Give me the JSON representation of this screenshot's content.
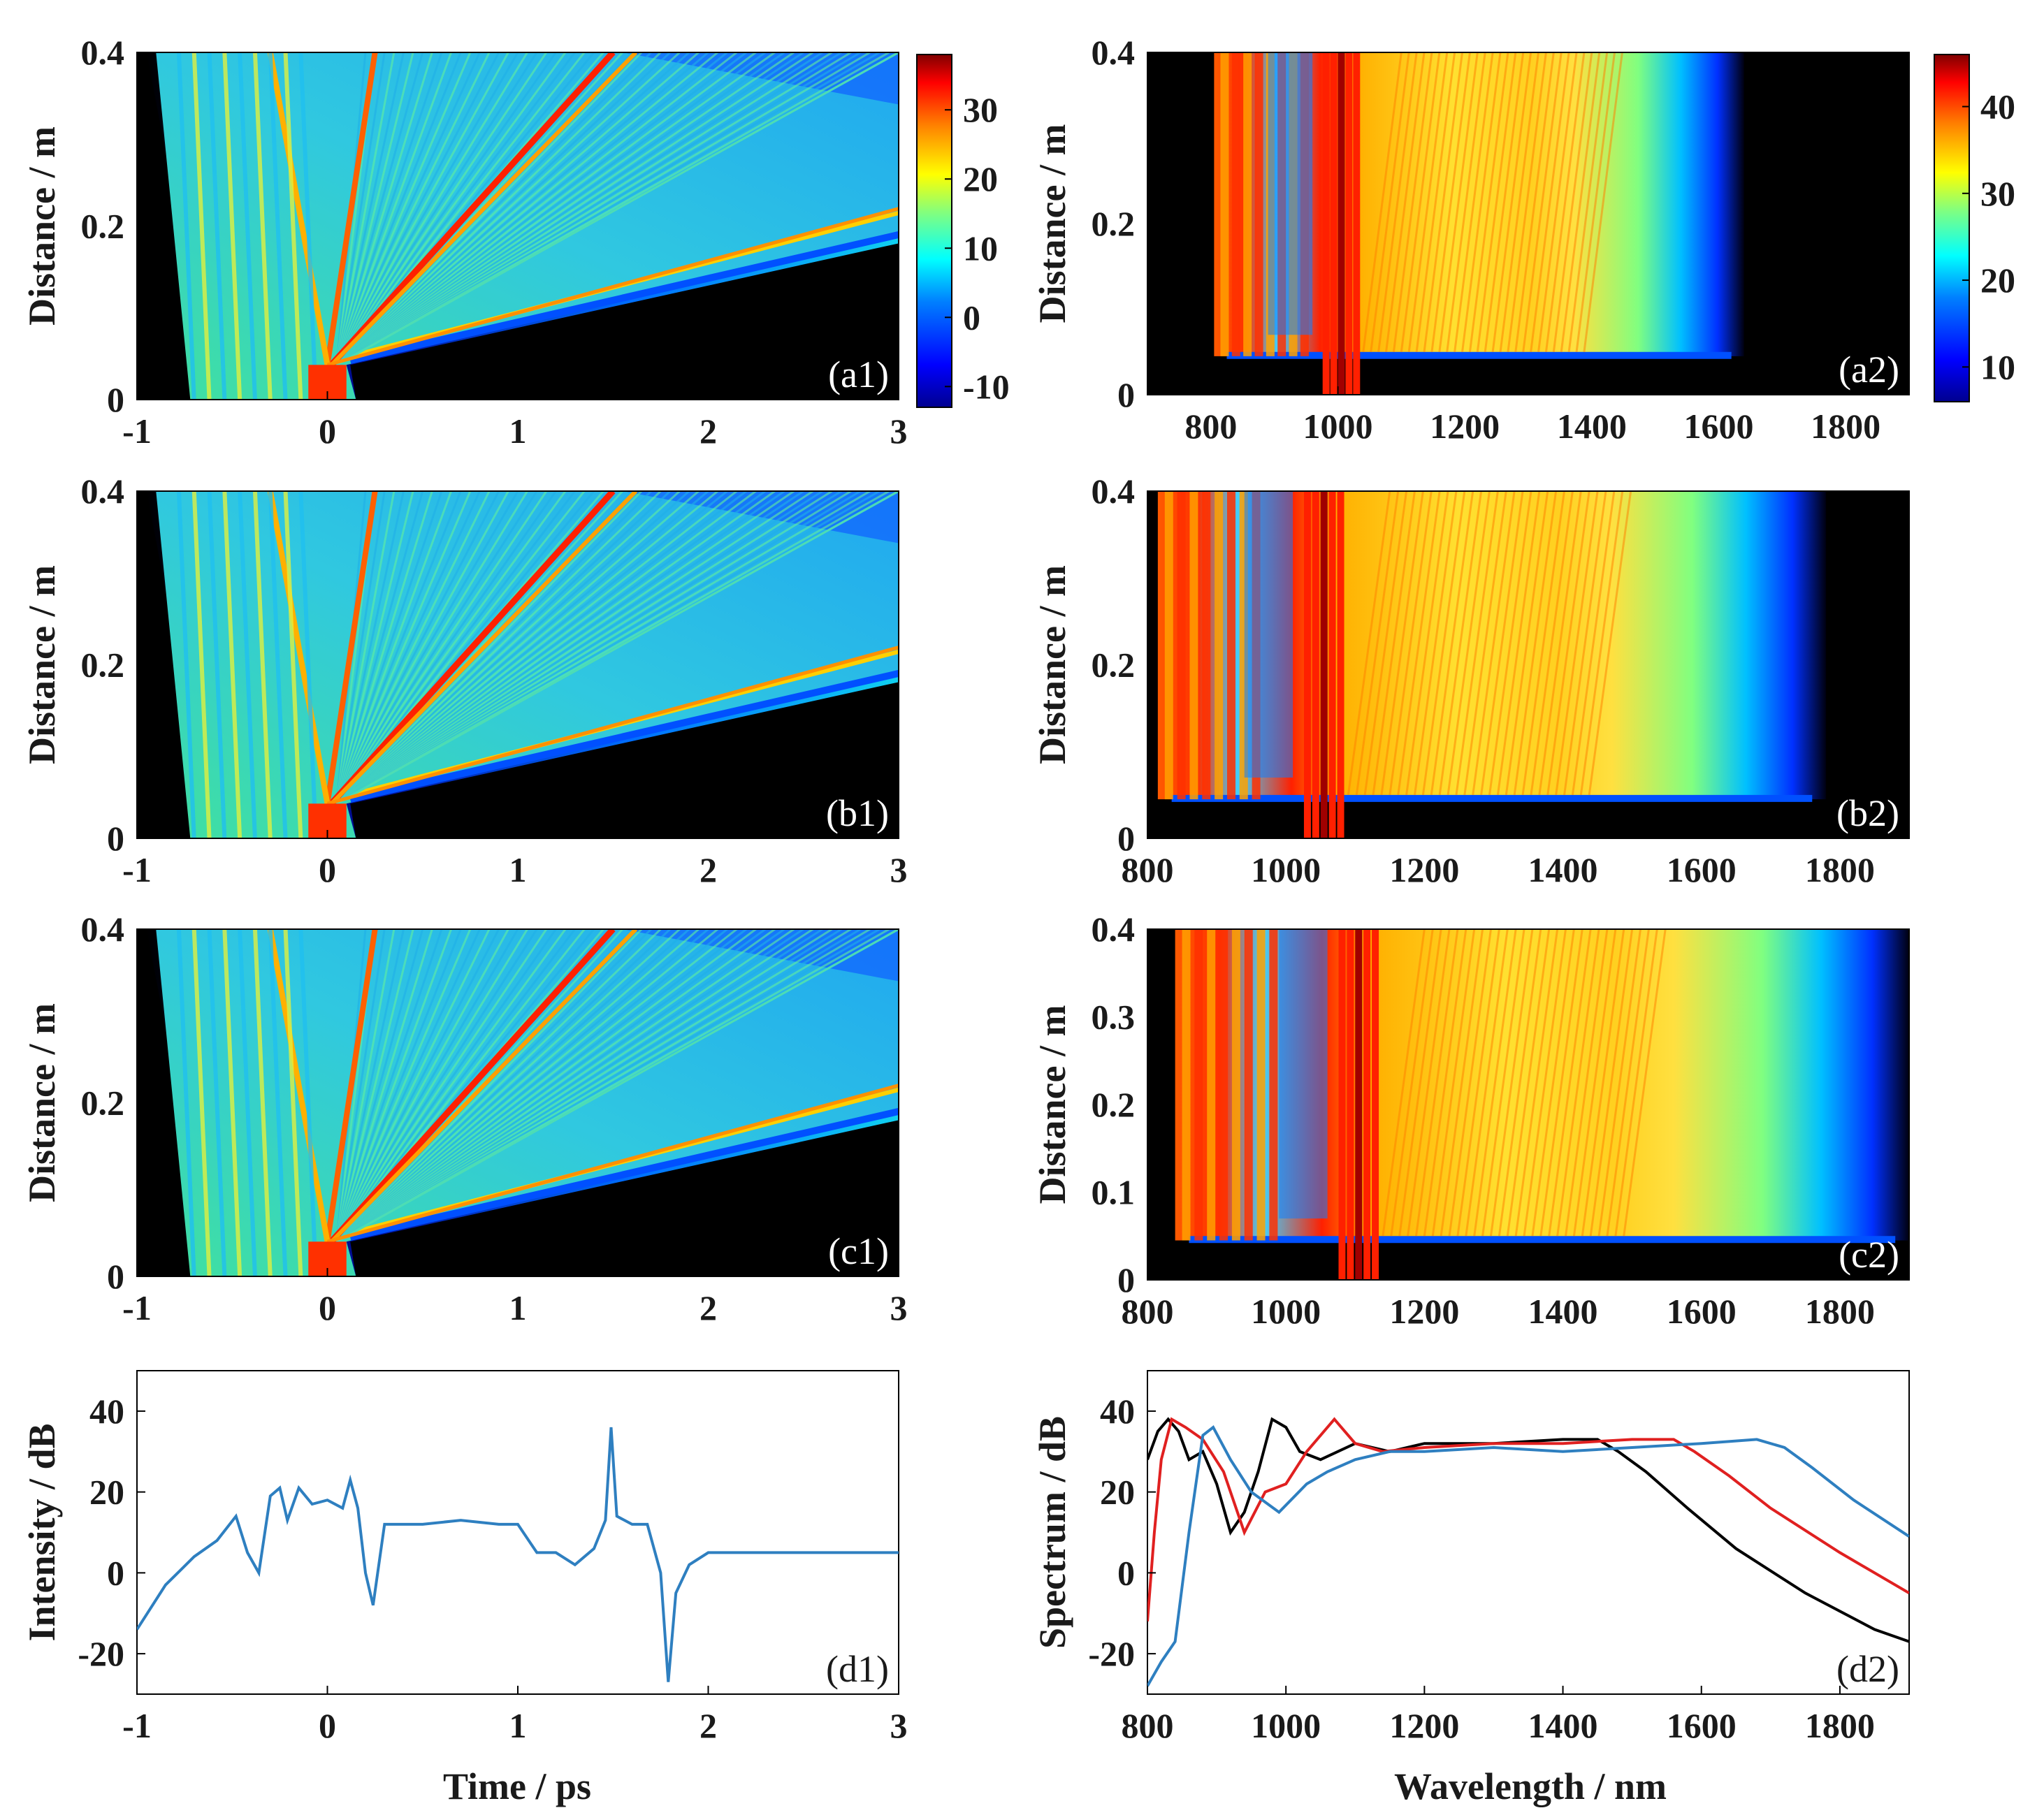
{
  "figure": {
    "time_axis_label": "Time / ps",
    "wavelength_axis_label": "Wavelength / nm",
    "distance_axis_label": "Distance / m"
  },
  "colors": {
    "jet_scale": [
      "#00008f",
      "#0000ff",
      "#0080ff",
      "#00ffff",
      "#80ff80",
      "#ffff00",
      "#ff8000",
      "#ff0000",
      "#800000"
    ],
    "background_no_signal": "#000000",
    "curve_d1": "#2e7fc0",
    "series_black": "#000000",
    "series_red": "#e02020",
    "series_blue": "#2e7fc0"
  },
  "chart_data": [
    {
      "id": "a1",
      "type": "heatmap",
      "tag": "(a1)",
      "title": "",
      "xlabel": "",
      "ylabel": "Distance / m",
      "xlim": [
        -1,
        3
      ],
      "ylim": [
        0,
        0.4
      ],
      "xticks": [
        "-1",
        "0",
        "1",
        "2",
        "3"
      ],
      "yticks": [
        "0",
        "0.2",
        "0.4"
      ],
      "colorbar": {
        "range": [
          -13,
          38
        ],
        "ticks": [
          "-10",
          "0",
          "10",
          "20",
          "30"
        ],
        "colormap": "jet"
      }
    },
    {
      "id": "a2",
      "type": "heatmap",
      "tag": "(a2)",
      "title": "",
      "xlabel": "",
      "ylabel": "Distance / m",
      "xlim": [
        700,
        1900
      ],
      "ylim": [
        0,
        0.4
      ],
      "xticks": [
        "800",
        "1000",
        "1200",
        "1400",
        "1600",
        "1800"
      ],
      "yticks": [
        "0",
        "0.2",
        "0.4"
      ],
      "colorbar": {
        "range": [
          6,
          46
        ],
        "ticks": [
          "10",
          "20",
          "30",
          "40"
        ],
        "colormap": "jet"
      }
    },
    {
      "id": "b1",
      "type": "heatmap",
      "tag": "(b1)",
      "title": "",
      "xlabel": "",
      "ylabel": "Distance / m",
      "xlim": [
        -1,
        3
      ],
      "ylim": [
        0,
        0.4
      ],
      "xticks": [
        "-1",
        "0",
        "1",
        "2",
        "3"
      ],
      "yticks": [
        "0",
        "0.2",
        "0.4"
      ]
    },
    {
      "id": "b2",
      "type": "heatmap",
      "tag": "(b2)",
      "title": "",
      "xlabel": "",
      "ylabel": "Distance / m",
      "xlim": [
        800,
        1900
      ],
      "ylim": [
        0,
        0.4
      ],
      "xticks": [
        "800",
        "1000",
        "1200",
        "1400",
        "1600",
        "1800"
      ],
      "yticks": [
        "0",
        "0.2",
        "0.4"
      ]
    },
    {
      "id": "c1",
      "type": "heatmap",
      "tag": "(c1)",
      "title": "",
      "xlabel": "",
      "ylabel": "Distance / m",
      "xlim": [
        -1,
        3
      ],
      "ylim": [
        0,
        0.4
      ],
      "xticks": [
        "-1",
        "0",
        "1",
        "2",
        "3"
      ],
      "yticks": [
        "0",
        "0.2",
        "0.4"
      ]
    },
    {
      "id": "c2",
      "type": "heatmap",
      "tag": "(c2)",
      "title": "",
      "xlabel": "",
      "ylabel": "Distance / m",
      "xlim": [
        800,
        1900
      ],
      "ylim": [
        0,
        0.4
      ],
      "xticks": [
        "800",
        "1000",
        "1200",
        "1400",
        "1600",
        "1800"
      ],
      "yticks": [
        "0",
        "0.1",
        "0.2",
        "0.3",
        "0.4"
      ]
    },
    {
      "id": "d1",
      "type": "line",
      "tag": "(d1)",
      "title": "",
      "xlabel": "Time / ps",
      "ylabel": "Intensity / dB",
      "xlim": [
        -1,
        3
      ],
      "ylim": [
        -30,
        50
      ],
      "xticks": [
        "-1",
        "0",
        "1",
        "2",
        "3"
      ],
      "yticks": [
        "-20",
        "0",
        "20",
        "40"
      ],
      "series": [
        {
          "color": "#2e7fc0",
          "points": [
            [
              -1,
              -14
            ],
            [
              -0.85,
              -3
            ],
            [
              -0.7,
              4
            ],
            [
              -0.58,
              8
            ],
            [
              -0.48,
              14
            ],
            [
              -0.42,
              5
            ],
            [
              -0.36,
              0
            ],
            [
              -0.3,
              19
            ],
            [
              -0.25,
              21
            ],
            [
              -0.21,
              13
            ],
            [
              -0.15,
              21
            ],
            [
              -0.08,
              17
            ],
            [
              0,
              18
            ],
            [
              0.08,
              16
            ],
            [
              0.12,
              23
            ],
            [
              0.16,
              16
            ],
            [
              0.2,
              0
            ],
            [
              0.24,
              -8
            ],
            [
              0.3,
              12
            ],
            [
              0.5,
              12
            ],
            [
              0.7,
              13
            ],
            [
              0.9,
              12
            ],
            [
              1.0,
              12
            ],
            [
              1.1,
              5
            ],
            [
              1.2,
              5
            ],
            [
              1.3,
              2
            ],
            [
              1.4,
              6
            ],
            [
              1.46,
              13
            ],
            [
              1.49,
              36
            ],
            [
              1.52,
              14
            ],
            [
              1.6,
              12
            ],
            [
              1.68,
              12
            ],
            [
              1.75,
              0
            ],
            [
              1.79,
              -27
            ],
            [
              1.83,
              -5
            ],
            [
              1.9,
              2
            ],
            [
              2.0,
              5
            ],
            [
              2.5,
              5
            ],
            [
              3.0,
              5
            ]
          ]
        }
      ]
    },
    {
      "id": "d2",
      "type": "line",
      "tag": "(d2)",
      "title": "",
      "xlabel": "Wavelength / nm",
      "ylabel": "Spectrum / dB",
      "xlim": [
        800,
        1900
      ],
      "ylim": [
        -30,
        50
      ],
      "xticks": [
        "800",
        "1000",
        "1200",
        "1400",
        "1600",
        "1800"
      ],
      "yticks": [
        "-20",
        "0",
        "20",
        "40"
      ],
      "series": [
        {
          "color": "#000000",
          "points": [
            [
              800,
              28
            ],
            [
              815,
              35
            ],
            [
              830,
              38
            ],
            [
              845,
              35
            ],
            [
              860,
              28
            ],
            [
              880,
              30
            ],
            [
              900,
              22
            ],
            [
              920,
              10
            ],
            [
              940,
              15
            ],
            [
              960,
              25
            ],
            [
              980,
              38
            ],
            [
              1000,
              36
            ],
            [
              1020,
              30
            ],
            [
              1050,
              28
            ],
            [
              1100,
              32
            ],
            [
              1150,
              30
            ],
            [
              1200,
              32
            ],
            [
              1300,
              32
            ],
            [
              1400,
              33
            ],
            [
              1450,
              33
            ],
            [
              1480,
              30
            ],
            [
              1520,
              25
            ],
            [
              1580,
              16
            ],
            [
              1650,
              6
            ],
            [
              1750,
              -5
            ],
            [
              1850,
              -14
            ],
            [
              1900,
              -17
            ]
          ]
        },
        {
          "color": "#e02020",
          "points": [
            [
              800,
              -12
            ],
            [
              810,
              10
            ],
            [
              820,
              28
            ],
            [
              835,
              38
            ],
            [
              855,
              36
            ],
            [
              880,
              33
            ],
            [
              910,
              25
            ],
            [
              940,
              10
            ],
            [
              970,
              20
            ],
            [
              1000,
              22
            ],
            [
              1030,
              30
            ],
            [
              1070,
              38
            ],
            [
              1100,
              32
            ],
            [
              1140,
              30
            ],
            [
              1200,
              31
            ],
            [
              1300,
              32
            ],
            [
              1400,
              32
            ],
            [
              1500,
              33
            ],
            [
              1560,
              33
            ],
            [
              1590,
              30
            ],
            [
              1640,
              24
            ],
            [
              1700,
              16
            ],
            [
              1800,
              5
            ],
            [
              1900,
              -5
            ]
          ]
        },
        {
          "color": "#2e7fc0",
          "points": [
            [
              800,
              -28
            ],
            [
              820,
              -22
            ],
            [
              840,
              -17
            ],
            [
              860,
              10
            ],
            [
              880,
              34
            ],
            [
              895,
              36
            ],
            [
              920,
              28
            ],
            [
              950,
              20
            ],
            [
              990,
              15
            ],
            [
              1030,
              22
            ],
            [
              1060,
              25
            ],
            [
              1100,
              28
            ],
            [
              1150,
              30
            ],
            [
              1200,
              30
            ],
            [
              1300,
              31
            ],
            [
              1400,
              30
            ],
            [
              1500,
              31
            ],
            [
              1600,
              32
            ],
            [
              1680,
              33
            ],
            [
              1720,
              31
            ],
            [
              1760,
              26
            ],
            [
              1820,
              18
            ],
            [
              1900,
              9
            ]
          ]
        }
      ]
    }
  ]
}
